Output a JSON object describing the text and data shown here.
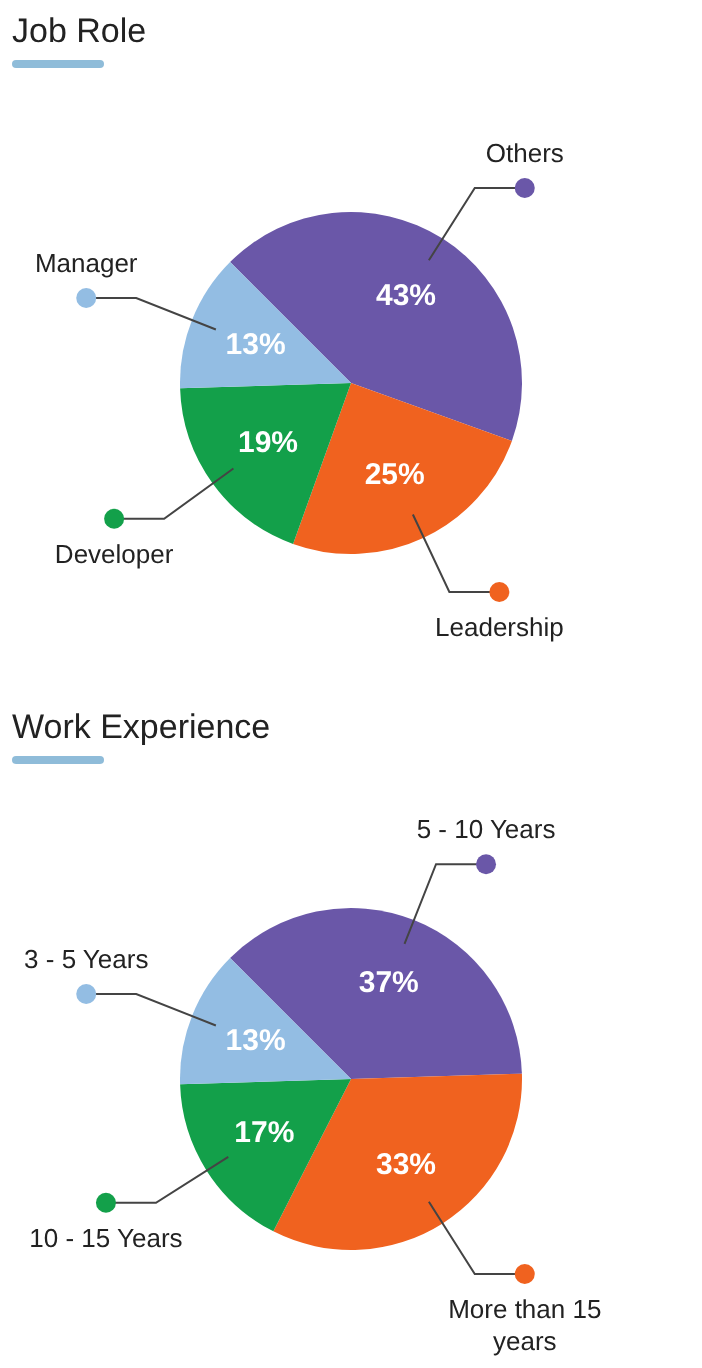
{
  "chart_data": [
    {
      "type": "pie",
      "title": "Job Role",
      "categories": [
        "Others",
        "Leadership",
        "Developer",
        "Manager"
      ],
      "values": [
        43,
        25,
        19,
        13
      ],
      "value_labels": [
        "43%",
        "25%",
        "19%",
        "13%"
      ],
      "colors": [
        "#6a57a8",
        "#f0621f",
        "#13a04a",
        "#93bde3"
      ],
      "legend": true
    },
    {
      "type": "pie",
      "title": "Work Experience",
      "categories": [
        "5 - 10 Years",
        "More than 15 years",
        "10 - 15 Years",
        "3 - 5 Years"
      ],
      "values": [
        37,
        33,
        17,
        13
      ],
      "value_labels": [
        "37%",
        "33%",
        "17%",
        "13%"
      ],
      "colors": [
        "#6a57a8",
        "#f0621f",
        "#13a04a",
        "#93bde3"
      ],
      "legend": true
    }
  ]
}
